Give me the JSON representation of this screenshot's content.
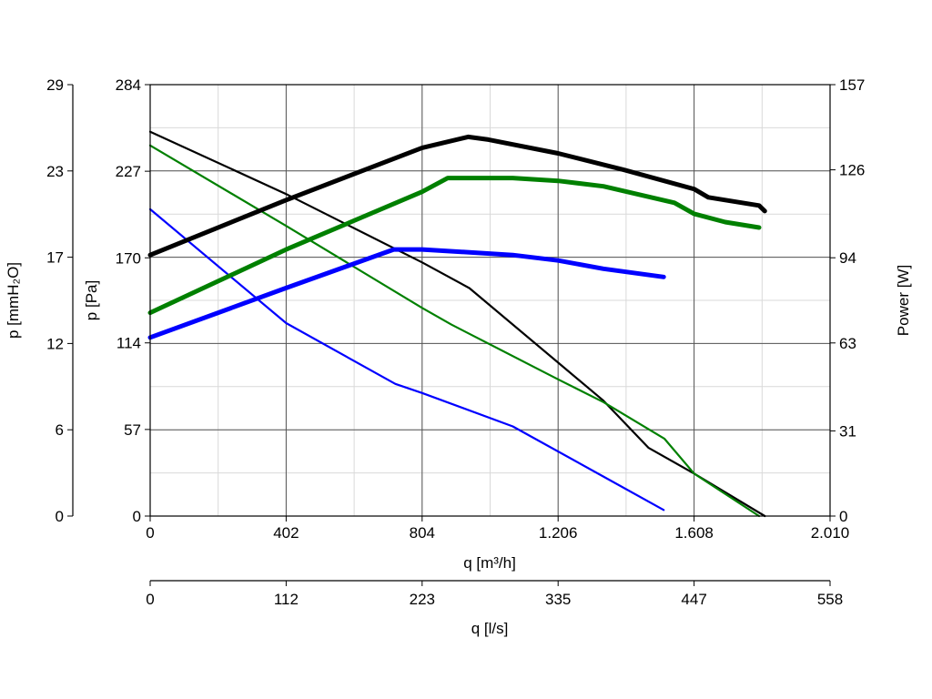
{
  "chart_data": {
    "type": "line",
    "grid": true,
    "x_axis_main": {
      "label": "q [m³/h]",
      "range": [
        0,
        2010
      ],
      "ticks": [
        0,
        402,
        804,
        1206,
        1608,
        2010
      ],
      "tick_labels": [
        "0",
        "402",
        "804",
        "1.206",
        "1.608",
        "2.010"
      ]
    },
    "x_axis_secondary": {
      "label": "q [l/s]",
      "ticks": [
        "0",
        "112",
        "223",
        "335",
        "447",
        "558"
      ]
    },
    "y_axis_left_outer": {
      "label": "p [mmH₂O]",
      "ticks": [
        "0",
        "6",
        "12",
        "17",
        "23",
        "29"
      ]
    },
    "y_axis_left_inner": {
      "label": "p [Pa]",
      "range": [
        0,
        284
      ],
      "ticks": [
        0,
        57,
        114,
        170,
        227,
        284
      ],
      "tick_labels": [
        "0",
        "57",
        "114",
        "170",
        "227",
        "284"
      ]
    },
    "y_axis_right": {
      "label": "Power [W]",
      "range": [
        0,
        157
      ],
      "ticks": [
        0,
        31,
        63,
        94,
        126,
        157
      ],
      "tick_labels": [
        "0",
        "31",
        "63",
        "94",
        "126",
        "157"
      ]
    },
    "series": [
      {
        "kind": "pressure",
        "axis": "left",
        "color": "#000000",
        "points": [
          [
            0,
            253
          ],
          [
            402,
            212
          ],
          [
            804,
            167
          ],
          [
            944,
            150
          ],
          [
            1206,
            101
          ],
          [
            1340,
            76
          ],
          [
            1473,
            45
          ],
          [
            1608,
            28
          ],
          [
            1817,
            0
          ]
        ]
      },
      {
        "kind": "pressure",
        "axis": "left",
        "color": "#008000",
        "points": [
          [
            0,
            244
          ],
          [
            402,
            191
          ],
          [
            804,
            137
          ],
          [
            891,
            126
          ],
          [
            1206,
            90
          ],
          [
            1340,
            75
          ],
          [
            1520,
            51
          ],
          [
            1608,
            28
          ],
          [
            1800,
            0
          ]
        ]
      },
      {
        "kind": "pressure",
        "axis": "left",
        "color": "#0000ff",
        "points": [
          [
            0,
            202
          ],
          [
            402,
            127
          ],
          [
            725,
            87
          ],
          [
            804,
            81
          ],
          [
            1072,
            59
          ],
          [
            1340,
            26
          ],
          [
            1518,
            4
          ]
        ]
      },
      {
        "kind": "power",
        "axis": "right",
        "color": "#000000",
        "points": [
          [
            0,
            95
          ],
          [
            402,
            115
          ],
          [
            804,
            134
          ],
          [
            940,
            138
          ],
          [
            1000,
            137
          ],
          [
            1206,
            132
          ],
          [
            1400,
            126
          ],
          [
            1608,
            119
          ],
          [
            1650,
            116
          ],
          [
            1800,
            113
          ],
          [
            1817,
            111
          ]
        ]
      },
      {
        "kind": "power",
        "axis": "right",
        "color": "#008000",
        "points": [
          [
            0,
            74
          ],
          [
            402,
            97
          ],
          [
            804,
            118
          ],
          [
            880,
            123
          ],
          [
            1072,
            123
          ],
          [
            1206,
            122
          ],
          [
            1340,
            120
          ],
          [
            1550,
            114
          ],
          [
            1608,
            110
          ],
          [
            1700,
            107
          ],
          [
            1800,
            105
          ]
        ]
      },
      {
        "kind": "power",
        "axis": "right",
        "color": "#0000ff",
        "points": [
          [
            0,
            65
          ],
          [
            402,
            83
          ],
          [
            720,
            97
          ],
          [
            804,
            97
          ],
          [
            1072,
            95
          ],
          [
            1206,
            93
          ],
          [
            1340,
            90
          ],
          [
            1518,
            87
          ]
        ]
      }
    ]
  }
}
